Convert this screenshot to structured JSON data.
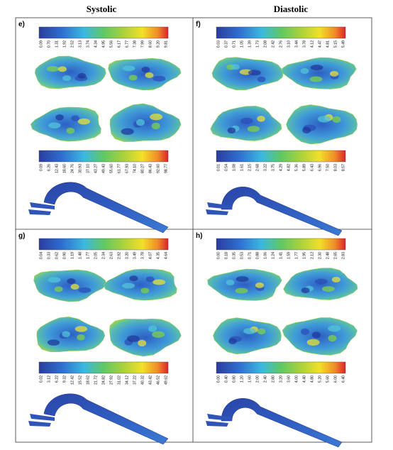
{
  "headers": [
    "Systolic",
    "Diastolic"
  ],
  "panels": [
    {
      "label": "e)",
      "colorbars": [
        [
          "0.09",
          "0.70",
          "1.31",
          "1.92",
          "2.52",
          "3.13",
          "3.74",
          "4.34",
          "4.95",
          "5.56",
          "6.17",
          "6.77",
          "7.38",
          "7.99",
          "8.60",
          "9.20",
          "9.81"
        ],
        [
          "0.09",
          "6.26",
          "12.43",
          "18.60",
          "24.76",
          "30.93",
          "37.10",
          "43.27",
          "49.43",
          "55.60",
          "61.77",
          "67.93",
          "74.10",
          "80.27",
          "86.43",
          "92.60",
          "98.77"
        ]
      ]
    },
    {
      "label": "f)",
      "colorbars": [
        [
          "0.03",
          "0.37",
          "0.71",
          "1.05",
          "1.39",
          "1.73",
          "2.08",
          "2.42",
          "2.76",
          "3.10",
          "3.44",
          "3.78",
          "4.12",
          "4.47",
          "4.81",
          "5.15",
          "5.49"
        ],
        [
          "0.01",
          "0.54",
          "1.08",
          "1.61",
          "2.15",
          "2.68",
          "3.22",
          "3.75",
          "4.29",
          "4.82",
          "5.36",
          "5.89",
          "6.43",
          "6.96",
          "7.50",
          "8.03",
          "8.57"
        ]
      ]
    },
    {
      "label": "g)",
      "colorbars": [
        [
          "0.04",
          "0.33",
          "0.62",
          "0.90",
          "1.19",
          "1.48",
          "1.77",
          "2.05",
          "2.34",
          "2.63",
          "2.92",
          "3.20",
          "3.49",
          "3.78",
          "4.07",
          "4.35",
          "4.64"
        ],
        [
          "0.02",
          "3.12",
          "6.22",
          "9.32",
          "12.42",
          "15.52",
          "18.62",
          "21.72",
          "24.82",
          "27.92",
          "31.02",
          "34.12",
          "37.22",
          "40.32",
          "43.42",
          "46.52",
          "49.62"
        ]
      ]
    },
    {
      "label": "h)",
      "colorbars": [
        [
          "0.00",
          "0.18",
          "0.35",
          "0.53",
          "0.71",
          "0.88",
          "1.06",
          "1.24",
          "1.41",
          "1.59",
          "1.77",
          "1.95",
          "2.12",
          "2.30",
          "2.48",
          "2.65",
          "2.83"
        ],
        [
          "0.00",
          "0.40",
          "0.80",
          "1.20",
          "1.60",
          "2.00",
          "2.40",
          "2.80",
          "3.20",
          "3.60",
          "4.00",
          "4.40",
          "4.80",
          "5.20",
          "5.60",
          "6.00",
          "6.40"
        ]
      ]
    }
  ]
}
